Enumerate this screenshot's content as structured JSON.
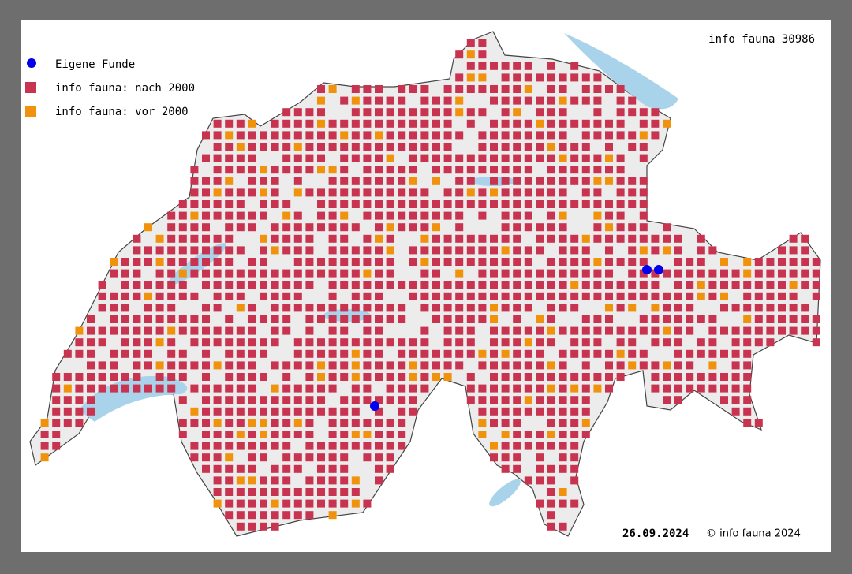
{
  "header": {
    "title": "info fauna 30986"
  },
  "legend": [
    {
      "label": "Eigene Funde"
    },
    {
      "label": "info fauna: nach 2000"
    },
    {
      "label": "info fauna: vor 2000"
    }
  ],
  "footer": {
    "date": "26.09.2024",
    "copyright": "© info fauna 2024"
  }
}
